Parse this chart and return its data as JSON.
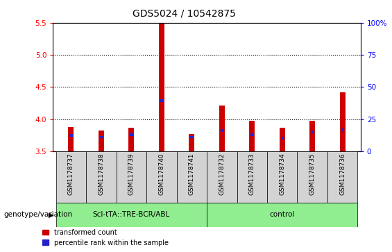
{
  "title": "GDS5024 / 10542875",
  "samples": [
    "GSM1178737",
    "GSM1178738",
    "GSM1178739",
    "GSM1178740",
    "GSM1178741",
    "GSM1178732",
    "GSM1178733",
    "GSM1178734",
    "GSM1178735",
    "GSM1178736"
  ],
  "red_values": [
    3.88,
    3.82,
    3.87,
    5.5,
    3.77,
    4.21,
    3.97,
    3.86,
    3.97,
    4.42
  ],
  "blue_values": [
    3.75,
    3.72,
    3.76,
    4.29,
    3.72,
    3.82,
    3.76,
    3.7,
    3.8,
    3.83
  ],
  "ylim_left": [
    3.5,
    5.5
  ],
  "ylim_right": [
    0,
    100
  ],
  "yticks_left": [
    3.5,
    4.0,
    4.5,
    5.0,
    5.5
  ],
  "yticks_right": [
    0,
    25,
    50,
    75,
    100
  ],
  "ylabel_right_labels": [
    "0",
    "25",
    "50",
    "75",
    "100%"
  ],
  "group1_label": "Scl-tTA::TRE-BCR/ABL",
  "group2_label": "control",
  "group1_indices": [
    0,
    1,
    2,
    3,
    4
  ],
  "group2_indices": [
    5,
    6,
    7,
    8,
    9
  ],
  "group1_color": "#90EE90",
  "group2_color": "#90EE90",
  "bar_bg_color": "#d3d3d3",
  "genotype_label": "genotype/variation",
  "legend_red": "transformed count",
  "legend_blue": "percentile rank within the sample",
  "red_color": "#cc0000",
  "blue_color": "#2222cc",
  "red_bar_width": 0.18,
  "blue_bar_width": 0.1,
  "title_fontsize": 10,
  "tick_fontsize": 7.5,
  "sample_fontsize": 6.5
}
